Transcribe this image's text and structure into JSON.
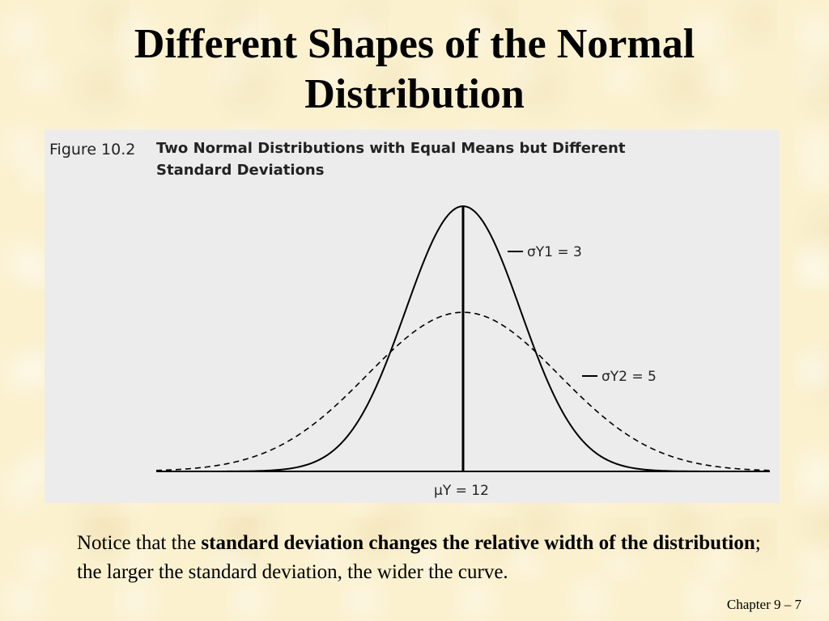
{
  "slide": {
    "title_line1": "Different Shapes of the Normal",
    "title_line2": "Distribution",
    "caption": {
      "part1": "Notice that the ",
      "bold": "standard deviation changes the relative width of the distribution",
      "part2": "; the larger the standard deviation, the wider the curve."
    },
    "footer": "Chapter 9 – 7"
  },
  "figure": {
    "number": "Figure 10.2",
    "title_line1": "Two Normal Distributions with Equal Means but Different",
    "title_line2": "Standard Deviations"
  },
  "chart_data": {
    "type": "line",
    "mean": 12,
    "mean_label": "μY = 12",
    "xlim": [
      -4,
      28
    ],
    "series": [
      {
        "name": "σY1 = 3",
        "sd": 3,
        "style": "solid"
      },
      {
        "name": "σY2 = 5",
        "sd": 5,
        "style": "dashed"
      }
    ],
    "grid": false
  }
}
